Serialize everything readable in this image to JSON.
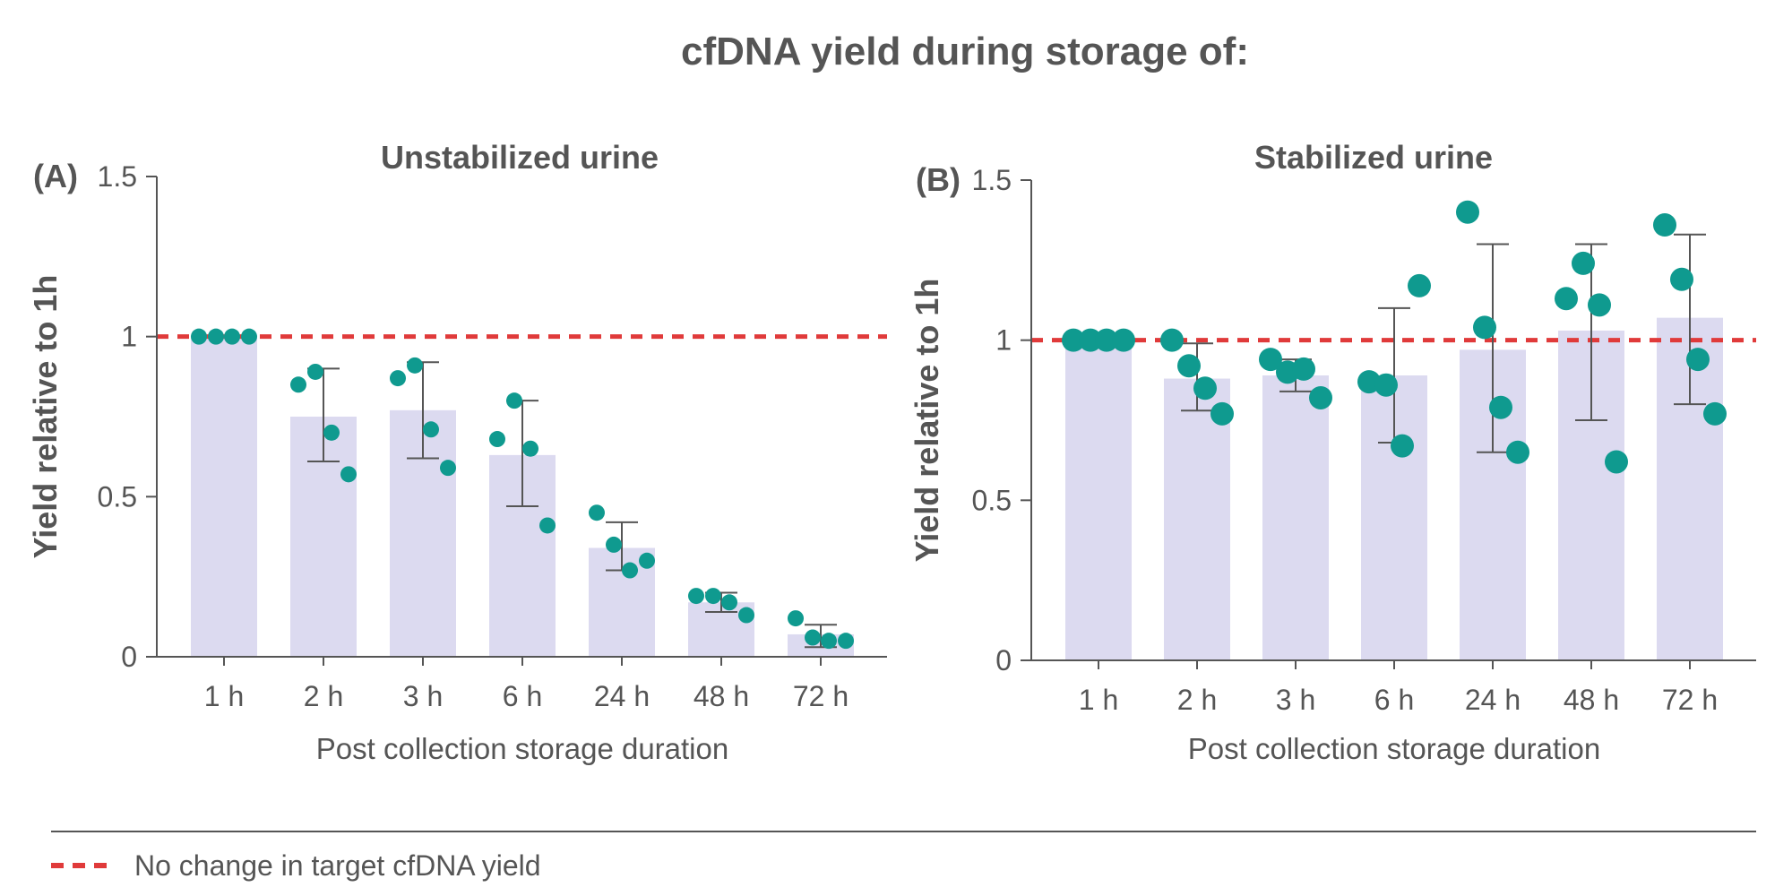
{
  "figure": {
    "title": "cfDNA yield during storage of:",
    "legend": {
      "label": "No change in target cfDNA yield",
      "color": "#e03a3a",
      "style": "dashed"
    }
  },
  "colors": {
    "bar": "#dcdaf0",
    "point": "#0f9a8f",
    "reference": "#e03a3a",
    "axis": "#555555",
    "errorbar": "#555555"
  },
  "chart_data": [
    {
      "type": "bar",
      "panel_label": "(A)",
      "title": "Unstabilized urine",
      "xlabel": "Post collection storage duration",
      "ylabel": "Yield relative to 1h",
      "ylim": [
        0,
        1.5
      ],
      "yticks": [
        0,
        0.5,
        1,
        1.5
      ],
      "ytick_labels": [
        "0",
        "0.5",
        "1",
        "1.5"
      ],
      "reference_line": 1,
      "categories": [
        "1 h",
        "2 h",
        "3 h",
        "6 h",
        "24 h",
        "48 h",
        "72 h"
      ],
      "values": [
        1.0,
        0.75,
        0.77,
        0.63,
        0.34,
        0.17,
        0.07
      ],
      "error_low": [
        1.0,
        0.61,
        0.62,
        0.47,
        0.27,
        0.14,
        0.03
      ],
      "error_high": [
        1.0,
        0.9,
        0.92,
        0.8,
        0.42,
        0.2,
        0.1
      ],
      "points": [
        [
          1.0,
          1.0,
          1.0,
          1.0
        ],
        [
          0.85,
          0.89,
          0.7,
          0.57
        ],
        [
          0.87,
          0.91,
          0.71,
          0.59
        ],
        [
          0.68,
          0.8,
          0.65,
          0.41
        ],
        [
          0.45,
          0.35,
          0.27,
          0.3
        ],
        [
          0.19,
          0.19,
          0.17,
          0.13
        ],
        [
          0.12,
          0.06,
          0.05,
          0.05
        ]
      ]
    },
    {
      "type": "bar",
      "panel_label": "(B)",
      "title": "Stabilized urine",
      "xlabel": "Post collection storage duration",
      "ylabel": "Yield relative to 1h",
      "ylim": [
        0,
        1.5
      ],
      "yticks": [
        0,
        0.5,
        1,
        1.5
      ],
      "ytick_labels": [
        "0",
        "0.5",
        "1",
        "1.5"
      ],
      "reference_line": 1,
      "categories": [
        "1 h",
        "2 h",
        "3 h",
        "6 h",
        "24 h",
        "48 h",
        "72 h"
      ],
      "values": [
        1.0,
        0.88,
        0.89,
        0.89,
        0.97,
        1.03,
        1.07
      ],
      "error_low": [
        1.0,
        0.78,
        0.84,
        0.68,
        0.65,
        0.75,
        0.8
      ],
      "error_high": [
        1.0,
        0.99,
        0.94,
        1.1,
        1.3,
        1.3,
        1.33
      ],
      "points": [
        [
          1.0,
          1.0,
          1.0,
          1.0
        ],
        [
          1.0,
          0.92,
          0.85,
          0.77
        ],
        [
          0.94,
          0.9,
          0.91,
          0.82
        ],
        [
          0.87,
          0.86,
          0.67,
          1.17
        ],
        [
          1.4,
          1.04,
          0.79,
          0.65
        ],
        [
          1.13,
          1.24,
          1.11,
          0.62
        ],
        [
          1.36,
          1.19,
          0.94,
          0.77
        ]
      ]
    }
  ]
}
